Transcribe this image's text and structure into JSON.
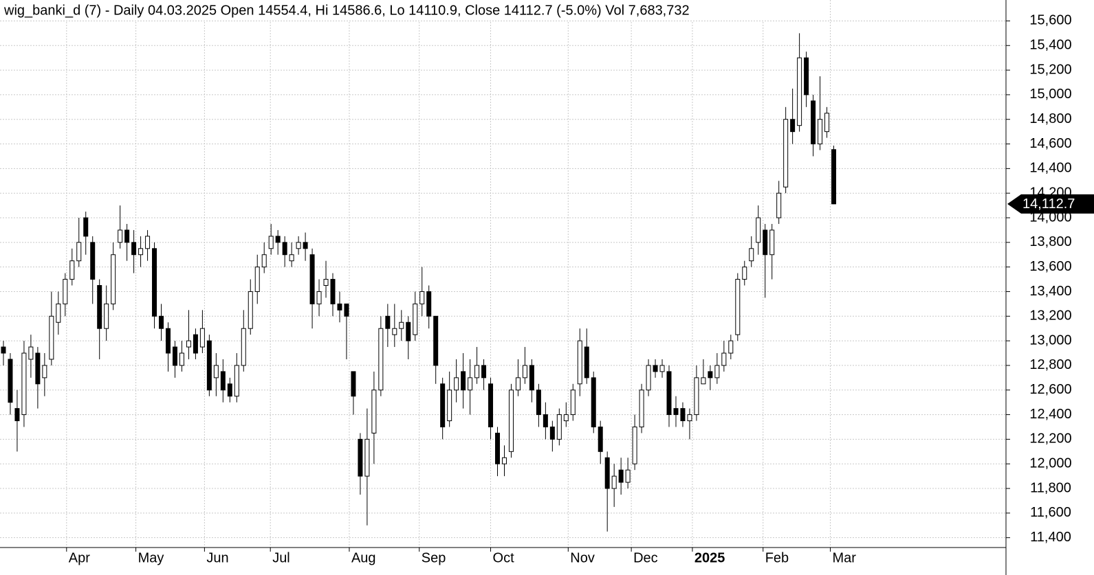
{
  "chart_data": {
    "type": "candlestick",
    "title": "wig_banki_d (7) - Daily 04.03.2025 Open 14554.4, Hi 14586.6, Lo 14110.9, Close 14112.7 (-5.0%) Vol 7,683,732",
    "xlim": [
      -0.5,
      146.1
    ],
    "xticks": [
      {
        "value": 9.2,
        "label": "Apr"
      },
      {
        "value": 19.3,
        "label": "May"
      },
      {
        "value": 29.3,
        "label": "Jun"
      },
      {
        "value": 38.9,
        "label": "Jul"
      },
      {
        "value": 50.4,
        "label": "Aug"
      },
      {
        "value": 60.6,
        "label": "Sep"
      },
      {
        "value": 71.0,
        "label": "Oct"
      },
      {
        "value": 82.3,
        "label": "Nov"
      },
      {
        "value": 91.5,
        "label": "Dec"
      },
      {
        "value": 100.4,
        "label": "2025"
      },
      {
        "value": 110.7,
        "label": "Feb"
      },
      {
        "value": 120.5,
        "label": "Mar"
      }
    ],
    "ylim": [
      11320,
      15770
    ],
    "yticks": [
      {
        "value": 11400,
        "label": "11,400"
      },
      {
        "value": 11600,
        "label": "11,600"
      },
      {
        "value": 11800,
        "label": "11,800"
      },
      {
        "value": 12000,
        "label": "12,000"
      },
      {
        "value": 12200,
        "label": "12,200"
      },
      {
        "value": 12400,
        "label": "12,400"
      },
      {
        "value": 12600,
        "label": "12,600"
      },
      {
        "value": 12800,
        "label": "12,800"
      },
      {
        "value": 13000,
        "label": "13,000"
      },
      {
        "value": 13200,
        "label": "13,200"
      },
      {
        "value": 13400,
        "label": "13,400"
      },
      {
        "value": 13600,
        "label": "13,600"
      },
      {
        "value": 13800,
        "label": "13,800"
      },
      {
        "value": 14000,
        "label": "14,000"
      },
      {
        "value": 14200,
        "label": "14,200"
      },
      {
        "value": 14400,
        "label": "14,400"
      },
      {
        "value": 14600,
        "label": "14,600"
      },
      {
        "value": 14800,
        "label": "14,800"
      },
      {
        "value": 15000,
        "label": "15,000"
      },
      {
        "value": 15200,
        "label": "15,200"
      },
      {
        "value": 15400,
        "label": "15,400"
      },
      {
        "value": 15600,
        "label": "15,600"
      }
    ],
    "grid": true,
    "color": "#000000",
    "last_price": {
      "value": 14112.7,
      "label": "14,112.7"
    },
    "open": [
      12950,
      12850,
      12450,
      12400,
      12850,
      12900,
      12700,
      12850,
      13150,
      13300,
      13500,
      13650,
      14000,
      13800,
      13450,
      13100,
      13300,
      13800,
      13900,
      13800,
      13700,
      13750,
      13750,
      13200,
      13100,
      12950,
      12800,
      12950,
      13050,
      12950,
      13000,
      12700,
      12750,
      12650,
      12550,
      12800,
      13100,
      13400,
      13600,
      13750,
      13850,
      13800,
      13650,
      13750,
      13800,
      13700,
      13300,
      13450,
      13500,
      13300,
      13300,
      12750,
      12200,
      11900,
      12250,
      12600,
      13200,
      13050,
      13100,
      13150,
      13050,
      13300,
      13400,
      13200,
      12650,
      12350,
      12600,
      12750,
      12600,
      12700,
      12800,
      12650,
      12250,
      12000,
      12100,
      12600,
      12700,
      12800,
      12600,
      12400,
      12300,
      12200,
      12350,
      12400,
      12650,
      12950,
      12700,
      12300,
      12050,
      11800,
      11950,
      11850,
      12000,
      12300,
      12600,
      12800,
      12750,
      12750,
      12450,
      12450,
      12350,
      12400,
      12650,
      12750,
      12700,
      12800,
      12900,
      13050,
      13500,
      13650,
      13800,
      13900,
      13700,
      14000,
      14250,
      14800,
      14750,
      15300,
      14950,
      14600,
      14700,
      14554.4
    ],
    "high": [
      13000,
      12900,
      12600,
      13000,
      13050,
      12950,
      12900,
      13400,
      13400,
      13550,
      13750,
      14000,
      14050,
      13850,
      13500,
      13450,
      13800,
      14100,
      13950,
      13900,
      13850,
      13900,
      13800,
      13300,
      13150,
      13000,
      13000,
      13250,
      13100,
      13250,
      13050,
      12900,
      12850,
      12700,
      12900,
      13250,
      13500,
      13700,
      13800,
      13950,
      13900,
      13850,
      13800,
      13850,
      13880,
      13750,
      13500,
      13650,
      13550,
      13400,
      13300,
      12750,
      12250,
      12450,
      12750,
      13200,
      13300,
      13300,
      13250,
      13200,
      13400,
      13600,
      13450,
      13200,
      12700,
      12750,
      12850,
      12900,
      12850,
      12950,
      12850,
      12700,
      12300,
      12150,
      12650,
      12850,
      12950,
      12850,
      12650,
      12500,
      12350,
      12450,
      12500,
      12650,
      13100,
      13100,
      12750,
      12350,
      12100,
      12000,
      12050,
      12050,
      12400,
      12650,
      12850,
      12850,
      12850,
      12800,
      12550,
      12500,
      12450,
      12800,
      12850,
      12800,
      12900,
      13000,
      13050,
      13550,
      13650,
      13850,
      14100,
      13950,
      13950,
      14300,
      14900,
      15050,
      15500,
      15350,
      15000,
      15150,
      14900,
      14586.6
    ],
    "low": [
      12800,
      12400,
      12100,
      12300,
      12700,
      12450,
      12550,
      12800,
      13050,
      13200,
      13450,
      13600,
      13700,
      13300,
      12850,
      13000,
      13250,
      13750,
      13650,
      13550,
      13600,
      13650,
      13100,
      13000,
      12750,
      12700,
      12750,
      12850,
      12850,
      12900,
      12550,
      12550,
      12500,
      12500,
      12500,
      12750,
      13050,
      13300,
      13550,
      13700,
      13700,
      13600,
      13600,
      13700,
      13650,
      13100,
      13200,
      13350,
      13200,
      13150,
      12850,
      12400,
      11750,
      11500,
      12000,
      12550,
      12950,
      12950,
      13000,
      12850,
      13000,
      13200,
      13100,
      12650,
      12200,
      12300,
      12500,
      12450,
      12400,
      12650,
      12600,
      12200,
      11900,
      11900,
      12050,
      12550,
      12650,
      12500,
      12300,
      12200,
      12100,
      12150,
      12300,
      12350,
      12550,
      12650,
      12250,
      12000,
      11450,
      11650,
      11750,
      11800,
      11950,
      12250,
      12550,
      12700,
      12700,
      12300,
      12300,
      12300,
      12200,
      12350,
      12650,
      12600,
      12650,
      12750,
      12850,
      13000,
      13450,
      13600,
      13700,
      13350,
      13500,
      13950,
      14200,
      14600,
      14700,
      14900,
      14500,
      14550,
      14650,
      14110.9
    ],
    "close": [
      12900,
      12500,
      12350,
      12900,
      12950,
      12650,
      12800,
      13200,
      13300,
      13500,
      13650,
      13800,
      13850,
      13500,
      13100,
      13300,
      13700,
      13900,
      13800,
      13700,
      13750,
      13850,
      13200,
      13100,
      12900,
      12800,
      12900,
      13000,
      12900,
      13100,
      12600,
      12800,
      12600,
      12550,
      12800,
      13100,
      13400,
      13600,
      13700,
      13850,
      13800,
      13700,
      13700,
      13800,
      13750,
      13300,
      13400,
      13500,
      13300,
      13250,
      13200,
      12550,
      11900,
      12200,
      12600,
      13100,
      13100,
      13100,
      13150,
      13000,
      13300,
      13400,
      13200,
      12800,
      12300,
      12600,
      12700,
      12600,
      12700,
      12800,
      12700,
      12300,
      12000,
      12050,
      12600,
      12700,
      12800,
      12600,
      12400,
      12300,
      12200,
      12400,
      12400,
      12600,
      13000,
      12700,
      12300,
      12100,
      11800,
      11900,
      11850,
      11950,
      12300,
      12600,
      12800,
      12750,
      12800,
      12400,
      12400,
      12350,
      12400,
      12700,
      12700,
      12700,
      12800,
      12900,
      13000,
      13500,
      13600,
      13750,
      14000,
      13700,
      13900,
      14200,
      14800,
      14700,
      15300,
      15000,
      14600,
      14800,
      14850,
      14112.7
    ]
  }
}
